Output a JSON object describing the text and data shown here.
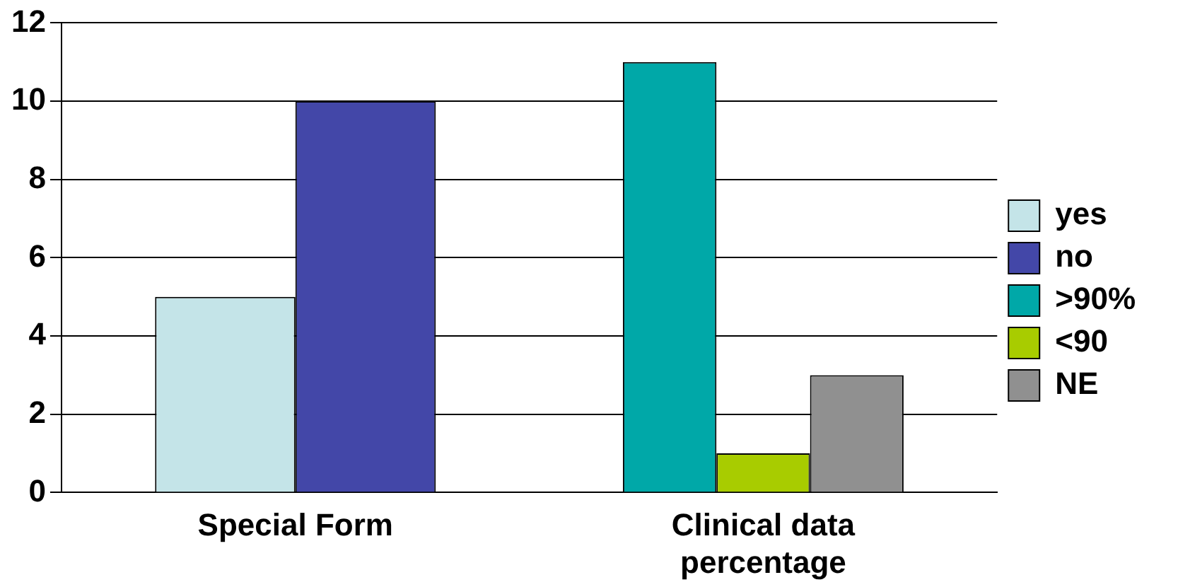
{
  "chart_data": {
    "type": "bar",
    "categories": [
      "Special Form",
      "Clinical data percentage"
    ],
    "series": [
      {
        "name": "yes",
        "color": "#c4e4e8",
        "values": [
          5,
          null
        ]
      },
      {
        "name": "no",
        "color": "#4347a8",
        "values": [
          10,
          null
        ]
      },
      {
        "name": ">90%",
        "color": "#00a8a8",
        "values": [
          null,
          11
        ]
      },
      {
        "name": "<90",
        "color": "#a8cc00",
        "values": [
          null,
          1
        ]
      },
      {
        "name": "NE",
        "color": "#909090",
        "values": [
          null,
          3
        ]
      }
    ],
    "ylim": [
      0,
      12
    ],
    "yticks": [
      0,
      2,
      4,
      6,
      8,
      10,
      12
    ],
    "grid": "y",
    "legend": "right"
  }
}
